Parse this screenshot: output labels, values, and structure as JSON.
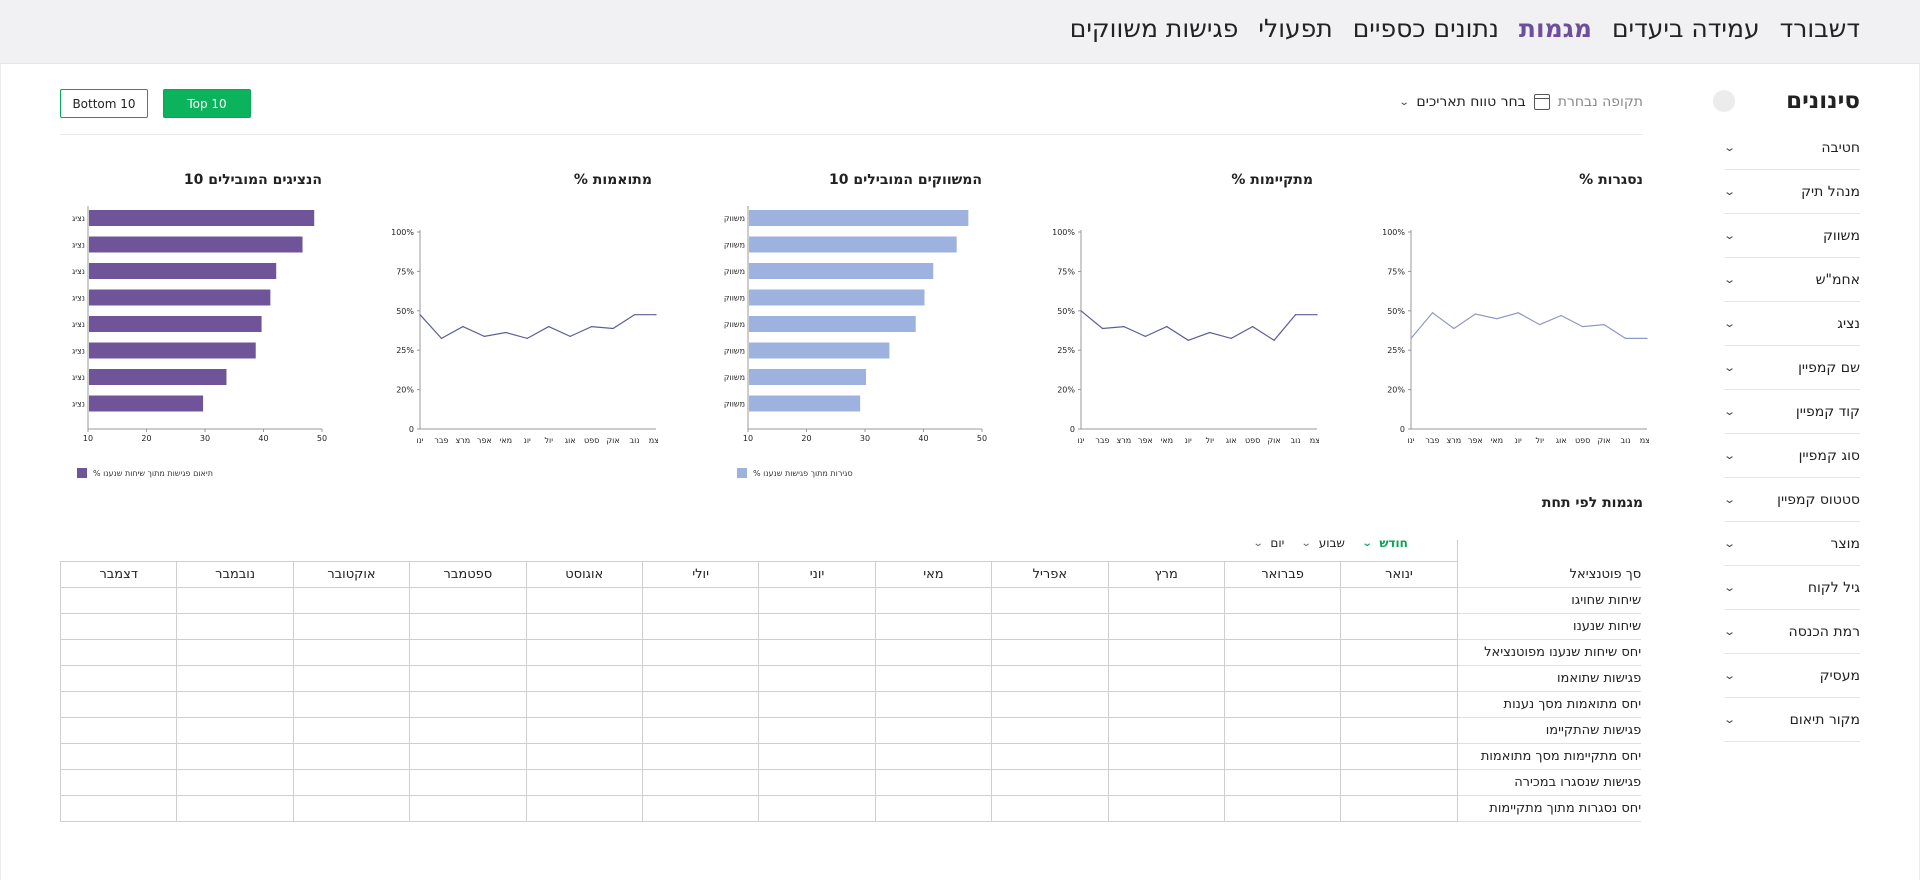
{
  "nav": {
    "items": [
      "דשבורד",
      "עמידה ביעדים",
      "מגמות",
      "נתונים כספיים",
      "תפעולי",
      "פגישות משווקים"
    ],
    "active_index": 2
  },
  "sidebar": {
    "title": "סינונים",
    "filters": [
      "חטיבה",
      "מנהל תיק",
      "משווק",
      "אחמ\"ש",
      "נציג",
      "שם קמפיין",
      "קוד קמפיין",
      "סוג קמפיין",
      "סטטוס קמפיין",
      "מוצר",
      "גיל לקוח",
      "רמת הכנסה",
      "מעסיק",
      "מקור תיאום"
    ]
  },
  "controls": {
    "bottom_label": "Bottom 10",
    "top_label": "Top 10",
    "period_label": "תקופה נבחרת",
    "date_pick_label": "בחר טווח תאריכים"
  },
  "colors": {
    "brand_purple": "#6e4f9b",
    "bar_purple": "#6f5499",
    "bar_blue": "#9db2df",
    "line_dark": "#5a5f98",
    "line_light": "#8e98c9",
    "accent_green": "#0bb35c"
  },
  "chart_data": [
    {
      "type": "line",
      "title": "% נסגרות",
      "x": [
        "ינו",
        "פבר",
        "מרצ",
        "אפר",
        "מאי",
        "יונ",
        "יול",
        "אוג",
        "ספט",
        "אוק",
        "נוב",
        "דצמ"
      ],
      "y_ticks": [
        "0",
        "20%",
        "25%",
        "50%",
        "75%",
        "100%"
      ],
      "values": [
        2.3,
        2.95,
        2.55,
        2.92,
        2.8,
        2.95,
        2.65,
        2.88,
        2.6,
        2.65,
        2.3,
        2.3
      ],
      "color": "#8e98c9",
      "note_values_are_tick_positions": true
    },
    {
      "type": "line",
      "title": "% מתקיימות",
      "x": [
        "ינו",
        "פבר",
        "מרצ",
        "אפר",
        "מאי",
        "יונ",
        "יול",
        "אוג",
        "ספט",
        "אוק",
        "נוב",
        "דצמ"
      ],
      "y_ticks": [
        "0",
        "20%",
        "25%",
        "50%",
        "75%",
        "100%"
      ],
      "values": [
        3.0,
        2.55,
        2.6,
        2.35,
        2.6,
        2.25,
        2.45,
        2.3,
        2.6,
        2.25,
        2.9,
        2.9
      ],
      "color": "#5a5f98"
    },
    {
      "type": "bar",
      "orientation": "horizontal",
      "title": "10 המשווקים המובילים",
      "categories": [
        "משווק",
        "משווק",
        "משווק",
        "משווק",
        "משווק",
        "משווק",
        "משווק",
        "משווק"
      ],
      "values": [
        47.5,
        45.5,
        41.5,
        40,
        38.5,
        34,
        30,
        29
      ],
      "xlim": [
        10,
        50
      ],
      "x_ticks": [
        10,
        20,
        30,
        40,
        50
      ],
      "color": "#9db2df",
      "legend": "% סגירות מתוך פגישות שנענו"
    },
    {
      "type": "line",
      "title": "% מתואמות",
      "x": [
        "ינו",
        "פבר",
        "מרצ",
        "אפר",
        "מאי",
        "יונ",
        "יול",
        "אוג",
        "ספט",
        "אוק",
        "נוב",
        "דצמ"
      ],
      "y_ticks": [
        "0",
        "20%",
        "25%",
        "50%",
        "75%",
        "100%"
      ],
      "values": [
        2.9,
        2.3,
        2.6,
        2.35,
        2.45,
        2.3,
        2.6,
        2.35,
        2.6,
        2.55,
        2.9,
        2.9
      ],
      "color": "#5a5f98"
    },
    {
      "type": "bar",
      "orientation": "horizontal",
      "title": "10 הנציגים המובילים",
      "categories": [
        "נציג",
        "נציג",
        "נציג",
        "נציג",
        "נציג",
        "נציג",
        "נציג",
        "נציג"
      ],
      "values": [
        48.5,
        46.5,
        42,
        41,
        39.5,
        38.5,
        33.5,
        29.5
      ],
      "xlim": [
        10,
        50
      ],
      "x_ticks": [
        10,
        20,
        30,
        40,
        50
      ],
      "color": "#6f5499",
      "legend": "% תיאום פגישות מתוך שיחות שנענו"
    }
  ],
  "trends": {
    "title": "מגמות לפי תחת",
    "period_tabs": [
      "חודש",
      "שבוע",
      "יום"
    ],
    "active_tab": 0,
    "corner_label": "סך פוטנציאל",
    "months": [
      "ינואר",
      "פברואר",
      "מרץ",
      "אפריל",
      "מאי",
      "יוני",
      "יולי",
      "אוגוסט",
      "ספטמבר",
      "אוקטובר",
      "נובמבר",
      "דצמבר"
    ],
    "rows": [
      "שיחות שחויגו",
      "שיחות שנענו",
      "יחס שיחות שנענו מפוטנציאל",
      "פגישות שתואמו",
      "יחס מתואמות מסך נענות",
      "פגישות שהתקיימו",
      "יחס מתקיימות מסך מתואמות",
      "פגישות שנסגרו במכירה",
      "יחס נסגרות מתוך מתקיימות"
    ]
  }
}
